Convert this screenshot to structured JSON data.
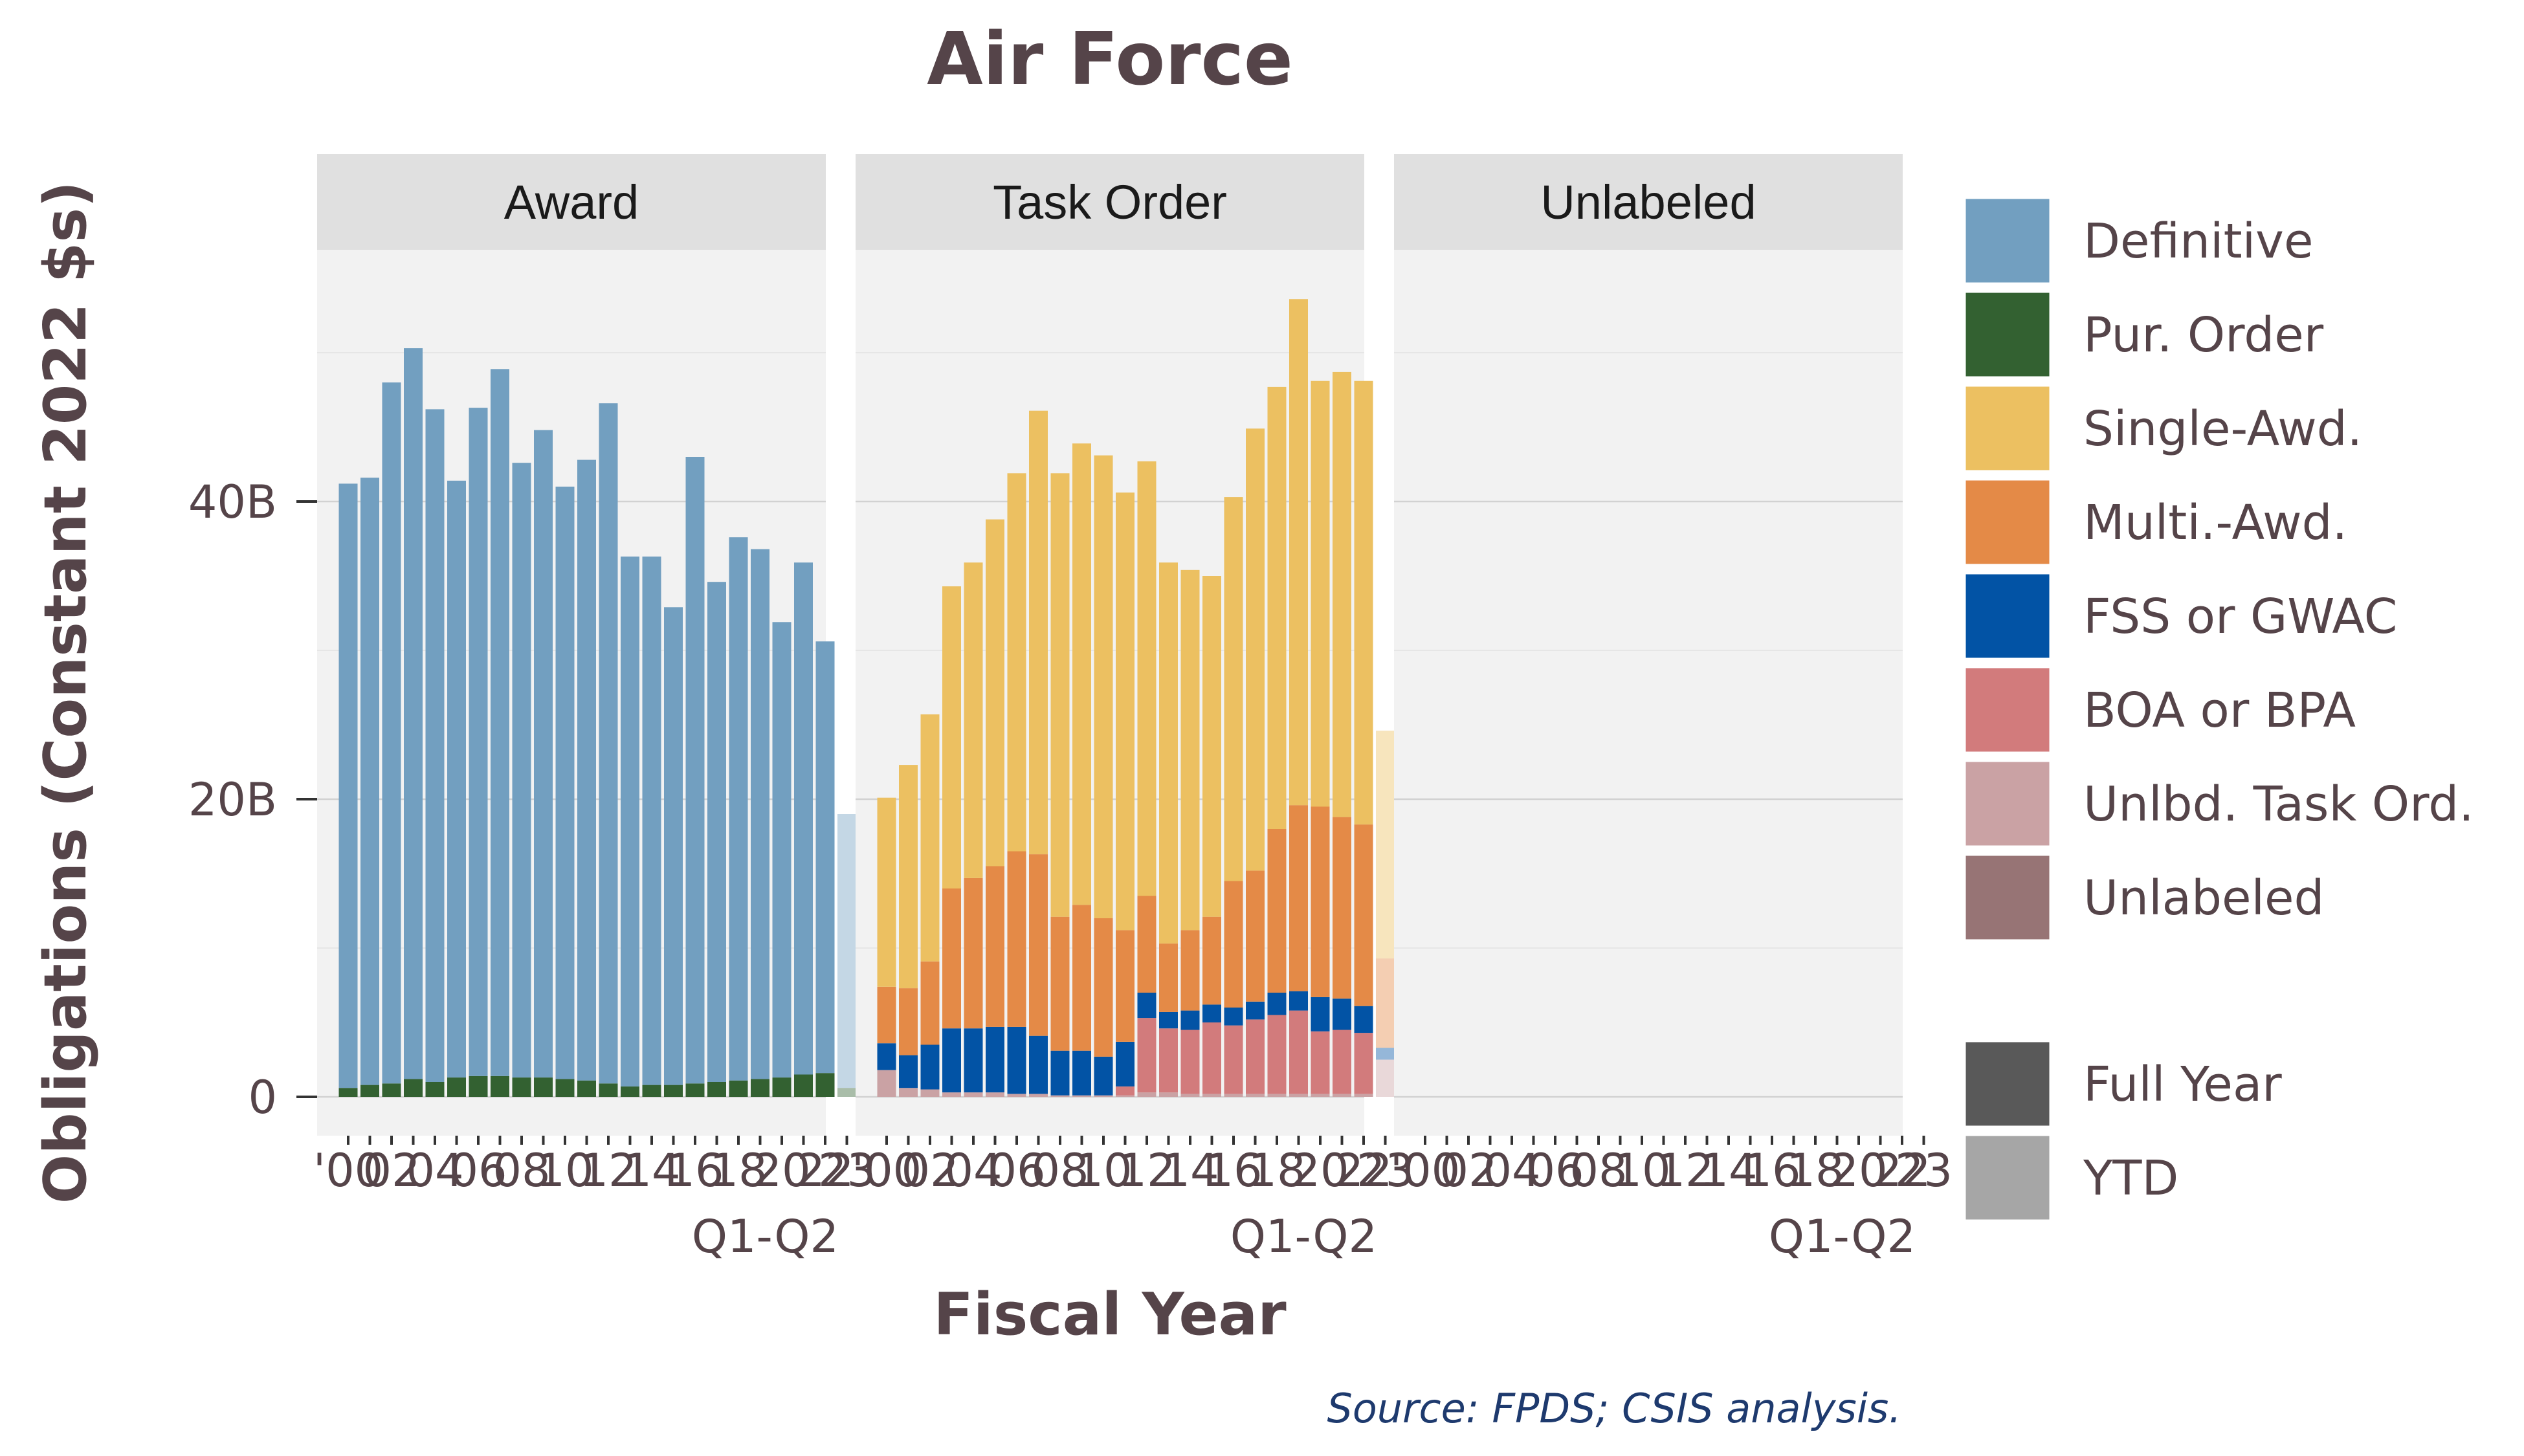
{
  "chart_data": {
    "type": "bar",
    "title": "Air Force",
    "xlabel": "Fiscal Year",
    "ylabel": "Obligations (Constant 2022 $s)",
    "source": "Source: FPDS; CSIS analysis.",
    "ylim": [
      0,
      58
    ],
    "y_ticks": [
      {
        "value": 0,
        "label": "0"
      },
      {
        "value": 20,
        "label": "20B"
      },
      {
        "value": 40,
        "label": "40B"
      }
    ],
    "x_tick_labels": [
      "'00",
      "02",
      "04",
      "06",
      "08",
      "10",
      "12",
      "14",
      "16",
      "18",
      "20",
      "22",
      "23"
    ],
    "last_period_label": "Q1-Q2",
    "years": [
      2000,
      2001,
      2002,
      2003,
      2004,
      2005,
      2006,
      2007,
      2008,
      2009,
      2010,
      2011,
      2012,
      2013,
      2014,
      2015,
      2016,
      2017,
      2018,
      2019,
      2020,
      2021,
      2022,
      2023
    ],
    "ytd_year": 2023,
    "panels": [
      {
        "name": "Award",
        "series": [
          {
            "name": "Pur. Order",
            "values": [
              0.6,
              0.8,
              0.9,
              1.2,
              1.0,
              1.3,
              1.4,
              1.4,
              1.3,
              1.3,
              1.2,
              1.1,
              0.9,
              0.7,
              0.8,
              0.8,
              0.9,
              1.0,
              1.1,
              1.2,
              1.3,
              1.5,
              1.6,
              0.6
            ]
          },
          {
            "name": "Definitive",
            "values": [
              40.6,
              40.8,
              47.1,
              49.1,
              45.2,
              40.1,
              44.9,
              47.5,
              41.3,
              43.5,
              39.8,
              41.7,
              45.7,
              35.6,
              35.5,
              32.1,
              42.1,
              33.6,
              36.5,
              35.6,
              30.6,
              34.4,
              29.0,
              18.4
            ]
          }
        ]
      },
      {
        "name": "Task Order",
        "series": [
          {
            "name": "Unlbd. Task Ord.",
            "values": [
              1.8,
              0.6,
              0.5,
              0.3,
              0.3,
              0.3,
              0.2,
              0.2,
              0.1,
              0.1,
              0.1,
              0.1,
              0.3,
              0.3,
              0.2,
              0.2,
              0.2,
              0.2,
              0.2,
              0.2,
              0.2,
              0.2,
              0.2,
              2.5
            ]
          },
          {
            "name": "BOA or BPA",
            "values": [
              0.0,
              0.0,
              0.0,
              0.0,
              0.0,
              0.0,
              0.0,
              0.0,
              0.0,
              0.0,
              0.0,
              0.6,
              5.0,
              4.3,
              4.3,
              4.8,
              4.6,
              5.0,
              5.3,
              5.6,
              4.2,
              4.3,
              4.1,
              0.0
            ]
          },
          {
            "name": "FSS or GWAC",
            "values": [
              1.8,
              2.2,
              3.0,
              4.3,
              4.3,
              4.4,
              4.5,
              3.9,
              3.0,
              3.0,
              2.6,
              3.0,
              1.7,
              1.1,
              1.3,
              1.2,
              1.2,
              1.2,
              1.5,
              1.3,
              2.3,
              2.1,
              1.8,
              0.8
            ]
          },
          {
            "name": "Multi.-Awd.",
            "values": [
              3.8,
              4.5,
              5.6,
              9.4,
              10.1,
              10.8,
              11.8,
              12.2,
              9.0,
              9.8,
              9.3,
              7.5,
              6.5,
              4.6,
              5.4,
              5.9,
              8.5,
              8.8,
              11.0,
              12.5,
              12.8,
              12.2,
              12.2,
              6.0
            ]
          },
          {
            "name": "Single-Awd.",
            "values": [
              12.7,
              15.0,
              16.6,
              20.3,
              21.2,
              23.3,
              25.4,
              29.8,
              29.8,
              31.0,
              31.1,
              29.4,
              29.2,
              25.6,
              24.2,
              22.9,
              25.8,
              29.7,
              29.7,
              34.0,
              28.6,
              29.9,
              29.8,
              15.3
            ]
          }
        ]
      },
      {
        "name": "Unlabeled",
        "series": []
      }
    ],
    "legend": {
      "position": "right",
      "items": [
        {
          "name": "Definitive",
          "color": "#729FC0"
        },
        {
          "name": "Pur. Order",
          "color": "#336131"
        },
        {
          "name": "Single-Awd.",
          "color": "#ECC061"
        },
        {
          "name": "Multi.-Awd.",
          "color": "#E48A47"
        },
        {
          "name": "FSS or GWAC",
          "color": "#0253A5"
        },
        {
          "name": "BOA or BPA",
          "color": "#D27B7C"
        },
        {
          "name": "Unlbd. Task Ord.",
          "color": "#CAA2A4"
        },
        {
          "name": "Unlabeled",
          "color": "#977475"
        }
      ],
      "alpha_items": [
        {
          "name": "Full Year",
          "color": "#595959"
        },
        {
          "name": "YTD",
          "color": "#A6A6A6"
        }
      ]
    },
    "panel_background": "#F2F2F2",
    "strip_background": "#E0E0E0",
    "grid": true
  }
}
